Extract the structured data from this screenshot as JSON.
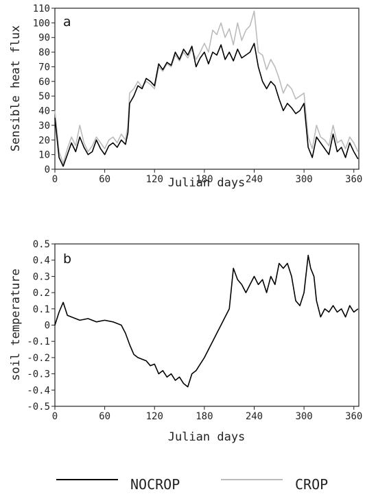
{
  "chart_data": [
    {
      "type": "line",
      "panel_label": "a",
      "xlabel": "Julian days",
      "ylabel": "Sensible heat flux",
      "xlim": [
        0,
        366
      ],
      "ylim": [
        0,
        110
      ],
      "xticks": [
        0,
        60,
        120,
        180,
        240,
        300,
        360
      ],
      "yticks": [
        0,
        10,
        20,
        30,
        40,
        50,
        60,
        70,
        80,
        90,
        100,
        110
      ],
      "series": [
        {
          "name": "NOCROP",
          "color": "#000000",
          "x": [
            0,
            5,
            10,
            15,
            20,
            25,
            30,
            35,
            40,
            45,
            50,
            55,
            60,
            65,
            70,
            75,
            80,
            85,
            88,
            90,
            95,
            100,
            105,
            110,
            115,
            120,
            125,
            130,
            135,
            140,
            145,
            150,
            155,
            160,
            165,
            170,
            175,
            180,
            185,
            190,
            195,
            200,
            205,
            210,
            215,
            220,
            225,
            230,
            235,
            240,
            245,
            250,
            255,
            260,
            265,
            270,
            275,
            280,
            285,
            290,
            295,
            300,
            305,
            310,
            315,
            320,
            325,
            330,
            335,
            340,
            345,
            350,
            355,
            360,
            365
          ],
          "y": [
            35,
            8,
            2,
            10,
            18,
            12,
            22,
            15,
            10,
            12,
            20,
            14,
            10,
            16,
            18,
            15,
            20,
            17,
            25,
            45,
            50,
            57,
            55,
            62,
            60,
            57,
            72,
            68,
            73,
            71,
            80,
            75,
            82,
            78,
            84,
            70,
            76,
            80,
            72,
            80,
            78,
            85,
            75,
            80,
            74,
            82,
            76,
            78,
            80,
            86,
            70,
            60,
            55,
            60,
            57,
            48,
            40,
            45,
            42,
            38,
            40,
            45,
            15,
            8,
            22,
            18,
            14,
            10,
            24,
            12,
            15,
            8,
            18,
            12,
            7
          ]
        },
        {
          "name": "CROP",
          "color": "#bbbbbb",
          "x": [
            0,
            5,
            10,
            15,
            20,
            25,
            30,
            35,
            40,
            45,
            50,
            55,
            60,
            65,
            70,
            75,
            80,
            85,
            88,
            90,
            95,
            100,
            105,
            110,
            115,
            120,
            125,
            130,
            135,
            140,
            145,
            150,
            155,
            160,
            165,
            170,
            175,
            180,
            185,
            190,
            195,
            200,
            205,
            210,
            215,
            220,
            225,
            230,
            235,
            240,
            245,
            250,
            255,
            260,
            265,
            270,
            275,
            280,
            285,
            290,
            295,
            300,
            305,
            310,
            315,
            320,
            325,
            330,
            335,
            340,
            345,
            350,
            355,
            360,
            365
          ],
          "y": [
            40,
            12,
            4,
            14,
            22,
            16,
            30,
            18,
            12,
            16,
            22,
            18,
            14,
            20,
            22,
            18,
            24,
            20,
            30,
            52,
            55,
            60,
            56,
            60,
            58,
            55,
            70,
            67,
            72,
            70,
            78,
            74,
            80,
            76,
            82,
            75,
            80,
            86,
            80,
            95,
            92,
            100,
            90,
            96,
            85,
            100,
            88,
            95,
            98,
            108,
            80,
            78,
            68,
            75,
            70,
            62,
            52,
            58,
            55,
            48,
            50,
            52,
            22,
            14,
            30,
            22,
            20,
            16,
            30,
            18,
            20,
            14,
            22,
            18,
            12
          ]
        }
      ]
    },
    {
      "type": "line",
      "panel_label": "b",
      "xlabel": "Julian days",
      "ylabel": "soil temperature",
      "xlim": [
        0,
        366
      ],
      "ylim": [
        -0.5,
        0.5
      ],
      "xticks": [
        0,
        60,
        120,
        180,
        240,
        300,
        360
      ],
      "yticks": [
        -0.5,
        -0.4,
        -0.3,
        -0.2,
        -0.1,
        0,
        0.1,
        0.2,
        0.3,
        0.4,
        0.5
      ],
      "series": [
        {
          "name": "NOCROP",
          "color": "#000000",
          "x": [
            0,
            5,
            10,
            15,
            20,
            30,
            40,
            50,
            60,
            70,
            80,
            85,
            90,
            95,
            100,
            110,
            115,
            120,
            125,
            130,
            135,
            140,
            145,
            150,
            155,
            160,
            165,
            170,
            175,
            180,
            185,
            190,
            195,
            200,
            205,
            210,
            212,
            215,
            220,
            225,
            230,
            235,
            240,
            245,
            250,
            255,
            260,
            265,
            270,
            275,
            280,
            285,
            290,
            295,
            300,
            305,
            308,
            312,
            315,
            320,
            325,
            330,
            335,
            340,
            345,
            350,
            355,
            360,
            365
          ],
          "y": [
            0.0,
            0.08,
            0.14,
            0.06,
            0.05,
            0.03,
            0.04,
            0.02,
            0.03,
            0.02,
            0.0,
            -0.05,
            -0.12,
            -0.18,
            -0.2,
            -0.22,
            -0.25,
            -0.24,
            -0.3,
            -0.28,
            -0.32,
            -0.3,
            -0.34,
            -0.32,
            -0.36,
            -0.38,
            -0.3,
            -0.28,
            -0.24,
            -0.2,
            -0.15,
            -0.1,
            -0.05,
            0.0,
            0.05,
            0.1,
            0.2,
            0.35,
            0.28,
            0.25,
            0.2,
            0.25,
            0.3,
            0.25,
            0.28,
            0.2,
            0.3,
            0.25,
            0.38,
            0.35,
            0.38,
            0.3,
            0.15,
            0.12,
            0.2,
            0.43,
            0.35,
            0.3,
            0.15,
            0.05,
            0.1,
            0.08,
            0.12,
            0.08,
            0.1,
            0.05,
            0.12,
            0.08,
            0.1
          ]
        }
      ]
    }
  ],
  "legend": {
    "items": [
      {
        "label": "NOCROP",
        "color": "#000000"
      },
      {
        "label": "CROP",
        "color": "#bbbbbb"
      }
    ]
  }
}
